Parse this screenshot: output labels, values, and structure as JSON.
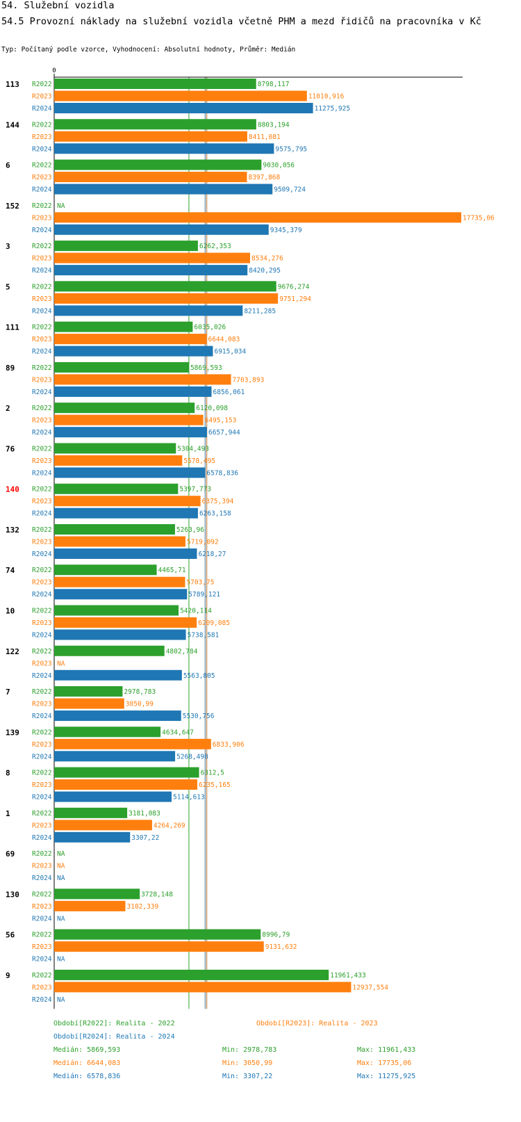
{
  "title": "54. Služební vozidla",
  "subtitle": "54.5 Provozní náklady na služební vozidla včetně PHM a mezd řidičů na pracovníka v Kč",
  "type_line": "Typ: Počítaný podle vzorce, Vyhodnocení: Absolutní hodnoty, Průměr: Medián",
  "colors": {
    "R2022": "#2ca02c",
    "R2023": "#ff7f0e",
    "R2024": "#1f77b4",
    "highlight": "#ff0000",
    "text": "#000000"
  },
  "chart_data": {
    "type": "bar",
    "orientation": "horizontal",
    "axis_zero_label": "0",
    "xlim": [
      0,
      17735.06
    ],
    "highlight_category": "140",
    "na_label": "NA",
    "categories": [
      "113",
      "144",
      "6",
      "152",
      "3",
      "5",
      "111",
      "89",
      "2",
      "76",
      "140",
      "132",
      "74",
      "10",
      "122",
      "7",
      "139",
      "8",
      "1",
      "69",
      "130",
      "56",
      "9"
    ],
    "series": [
      {
        "name": "R2022",
        "values": [
          8798.117,
          8803.194,
          9030.056,
          null,
          6262.353,
          9676.274,
          6035.026,
          5869.593,
          6120.098,
          5304.493,
          5397.773,
          5263.96,
          4465.71,
          5420.114,
          4802.784,
          2978.783,
          4634.647,
          6312.5,
          3181.083,
          null,
          3728.148,
          8996.79,
          11961.433
        ],
        "labels": [
          "8798,117",
          "8803,194",
          "9030,056",
          "NA",
          "6262,353",
          "9676,274",
          "6035,026",
          "5869,593",
          "6120,098",
          "5304,493",
          "5397,773",
          "5263,96",
          "4465,71",
          "5420,114",
          "4802,784",
          "2978,783",
          "4634,647",
          "6312,5",
          "3181,083",
          "NA",
          "3728,148",
          "8996,79",
          "11961,433"
        ]
      },
      {
        "name": "R2023",
        "values": [
          11010.916,
          8411.081,
          8397.868,
          17735.06,
          8534.276,
          9751.294,
          6644.083,
          7703.893,
          6495.153,
          5578.495,
          6375.394,
          5719.092,
          5703.75,
          6209.085,
          null,
          3050.99,
          6833.906,
          6235.165,
          4264.269,
          null,
          3102.339,
          9131.632,
          12937.554
        ],
        "labels": [
          "11010,916",
          "8411,081",
          "8397,868",
          "17735,06",
          "8534,276",
          "9751,294",
          "6644,083",
          "7703,893",
          "6495,153",
          "5578,495",
          "6375,394",
          "5719,092",
          "5703,75",
          "6209,085",
          "NA",
          "3050,99",
          "6833,906",
          "6235,165",
          "4264,269",
          "NA",
          "3102,339",
          "9131,632",
          "12937,554"
        ]
      },
      {
        "name": "R2024",
        "values": [
          11275.925,
          9575.795,
          9509.724,
          9345.379,
          8420.295,
          8211.285,
          6915.034,
          6856.061,
          6657.944,
          6578.836,
          6263.158,
          6218.27,
          5789.121,
          5738.581,
          5563.805,
          5530.756,
          5268.498,
          5114.613,
          3307.22,
          null,
          null,
          null,
          null
        ],
        "labels": [
          "11275,925",
          "9575,795",
          "9509,724",
          "9345,379",
          "8420,295",
          "8211,285",
          "6915,034",
          "6856,061",
          "6657,944",
          "6578,836",
          "6263,158",
          "6218,27",
          "5789,121",
          "5738,581",
          "5563,805",
          "5530,756",
          "5268,498",
          "5114,613",
          "3307,22",
          "NA",
          "NA",
          "NA",
          "NA"
        ]
      }
    ],
    "median_lines": [
      5869.593,
      6644.083,
      6578.836
    ]
  },
  "legend": {
    "period_2022": "Období[R2022]: Realita - 2022",
    "period_2023": "Období[R2023]: Realita - 2023",
    "period_2024": "Období[R2024]: Realita - 2024",
    "stats": [
      {
        "median": "Medián: 5869,593",
        "min": "Min: 2978,783",
        "max": "Max: 11961,433"
      },
      {
        "median": "Medián: 6644,083",
        "min": "Min: 3050,99",
        "max": "Max: 17735,06"
      },
      {
        "median": "Medián: 6578,836",
        "min": "Min: 3307,22",
        "max": "Max: 11275,925"
      }
    ]
  }
}
